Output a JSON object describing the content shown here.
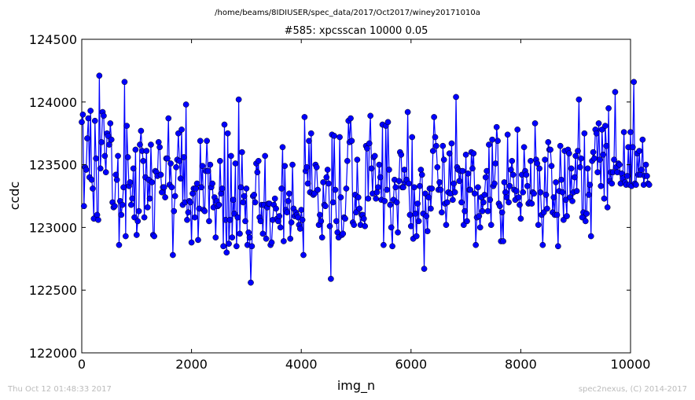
{
  "header": {
    "path": "/home/beams/8IDIUSER/spec_data/2017/Oct2017/winey20171010a"
  },
  "footer": {
    "timestamp": "Thu Oct 12 01:48:33 2017",
    "credit": "spec2nexus, (C) 2014-2017"
  },
  "colors": {
    "series": "#0000ff",
    "marker_edge": "#000000",
    "footer_text": "#bbbbbb"
  },
  "chart_data": {
    "type": "line",
    "title": "#585: xpcsscan 10000 0.05",
    "xlabel": "img_n",
    "ylabel": "ccdc",
    "xlim": [
      0,
      10000
    ],
    "ylim": [
      122000,
      124500
    ],
    "x_ticks": [
      0,
      2000,
      4000,
      6000,
      8000,
      10000
    ],
    "y_ticks": [
      122000,
      122500,
      123000,
      123500,
      124000,
      124500
    ],
    "x_tick_labels": [
      "0",
      "2000",
      "4000",
      "6000",
      "8000",
      "10000"
    ],
    "y_tick_labels": [
      "122000",
      "122500",
      "123000",
      "123500",
      "124000",
      "124500"
    ],
    "grid": false,
    "marker": "circle",
    "n_points": 500,
    "x_step": 20,
    "series": [
      {
        "values": [
          123840,
          123900,
          123170,
          123480,
          123460,
          123710,
          123870,
          123400,
          123930,
          123380,
          123310,
          123070,
          123850,
          123550,
          123100,
          123060,
          124210,
          123470,
          123680,
          123920,
          123890,
          123570,
          123440,
          123750,
          123730,
          123660,
          123830,
          123700,
          123200,
          123160,
          123170,
          123420,
          123380,
          123570,
          122860,
          123210,
          123100,
          123180,
          123320,
          124160,
          122930,
          123810,
          123560,
          123330,
          123360,
          123180,
          123230,
          123470,
          123080,
          123620,
          122940,
          123050,
          123130,
          123660,
          123770,
          123610,
          123530,
          123080,
          123400,
          123610,
          123160,
          123380,
          123230,
          123660,
          123360,
          122940,
          122930,
          123450,
          123440,
          123410,
          123680,
          123640,
          123420,
          123280,
          123320,
          123320,
          123240,
          123550,
          123550,
          123870,
          123340,
          123510,
          123320,
          122780,
          123130,
          123250,
          123480,
          123540,
          123750,
          123530,
          123390,
          123780,
          123180,
          123560,
          123200,
          123980,
          123060,
          123120,
          123210,
          123200,
          122880,
          123270,
          123310,
          123080,
          123310,
          123350,
          122900,
          123150,
          123690,
          123320,
          123490,
          123140,
          123130,
          123450,
          123690,
          123450,
          123050,
          123500,
          123320,
          123350,
          123160,
          123240,
          122920,
          123210,
          123170,
          123180,
          123530,
          123270,
          123310,
          122850,
          123820,
          123060,
          122800,
          123750,
          122870,
          123060,
          123570,
          122920,
          123220,
          123110,
          123510,
          122850,
          123080,
          124020,
          122950,
          123320,
          123600,
          123200,
          123250,
          123050,
          123310,
          122860,
          122960,
          122920,
          122560,
          122850,
          123250,
          123260,
          123200,
          123510,
          123440,
          123530,
          123080,
          123050,
          123180,
          122950,
          123180,
          123570,
          122910,
          123160,
          123190,
          123190,
          122860,
          122880,
          123060,
          123180,
          123230,
          123150,
          123070,
          123050,
          123090,
          123000,
          123310,
          123640,
          122890,
          123490,
          123140,
          123120,
          123210,
          123270,
          122910,
          123040,
          123500,
          123150,
          123090,
          123120,
          123100,
          123080,
          123020,
          122990,
          123140,
          123060,
          122780,
          123880,
          123450,
          123480,
          123350,
          123690,
          123280,
          123750,
          123270,
          123260,
          123270,
          123500,
          123480,
          123300,
          123020,
          123100,
          123050,
          122920,
          123360,
          123180,
          123170,
          123400,
          123460,
          123350,
          123010,
          122590,
          123740,
          123200,
          123730,
          123300,
          123050,
          122960,
          122920,
          123720,
          123240,
          122940,
          122950,
          123080,
          123070,
          123310,
          123530,
          123850,
          123680,
          123870,
          123690,
          123040,
          123020,
          123260,
          123120,
          123540,
          123240,
          123150,
          123020,
          123100,
          123100,
          123070,
          123010,
          123650,
          123630,
          123230,
          123670,
          123890,
          123470,
          123270,
          123560,
          123570,
          123230,
          123280,
          123320,
          123500,
          123400,
          123220,
          123820,
          122860,
          123210,
          123810,
          123300,
          123840,
          123460,
          123180,
          123000,
          122850,
          123220,
          123380,
          123320,
          123200,
          122960,
          123370,
          123600,
          123580,
          123320,
          123320,
          123460,
          123360,
          123380,
          123920,
          123350,
          123100,
          123010,
          123720,
          122910,
          123320,
          123110,
          122930,
          123190,
          123050,
          123330,
          123460,
          123420,
          123110,
          122670,
          123270,
          123090,
          122970,
          123240,
          123310,
          123150,
          123310,
          123610,
          123880,
          123720,
          123650,
          123480,
          123300,
          123360,
          123300,
          123120,
          123650,
          123540,
          123190,
          123020,
          123200,
          123280,
          123590,
          123270,
          123670,
          123220,
          123350,
          123280,
          124040,
          123480,
          123460,
          123370,
          123450,
          123200,
          123450,
          123020,
          123130,
          123580,
          123050,
          123430,
          123300,
          123300,
          123600,
          123470,
          123590,
          123270,
          122860,
          123080,
          123320,
          123090,
          123000,
          123240,
          123130,
          123200,
          123260,
          123400,
          123450,
          123130,
          123660,
          123220,
          123020,
          123700,
          123330,
          123350,
          123510,
          123800,
          123690,
          123190,
          123170,
          122890,
          123120,
          122890,
          123360,
          123280,
          123240,
          123740,
          123200,
          123330,
          123460,
          123530,
          123420,
          123300,
          123220,
          123290,
          123780,
          123240,
          123180,
          123070,
          123420,
          123280,
          123640,
          123450,
          123420,
          123330,
          123190,
          123200,
          123530,
          123190,
          123280,
          123270,
          123830,
          123540,
          123510,
          123020,
          123470,
          123280,
          123100,
          122860,
          123120,
          123540,
          123260,
          123150,
          123680,
          123620,
          123620,
          123490,
          123120,
          123240,
          123100,
          123360,
          123100,
          122850,
          123290,
          123650,
          123380,
          123280,
          123060,
          123610,
          123220,
          123090,
          123620,
          123590,
          123240,
          123470,
          123210,
          123280,
          123400,
          123570,
          123290,
          123610,
          124020,
          123480,
          123550,
          123080,
          123120,
          123750,
          123050,
          123110,
          123470,
          123260,
          123340,
          122930,
          123530,
          123600,
          123550,
          123780,
          123750,
          123440,
          123830,
          123540,
          123330,
          123780,
          123580,
          123230,
          123810,
          123650,
          123160,
          123950,
          123370,
          123440,
          123350,
          123440,
          123540,
          124080,
          123480,
          123440,
          123510,
          123500,
          123350,
          123430,
          123390,
          123760,
          123360,
          123340,
          123410,
          123640,
          123340,
          123760,
          123330,
          123640,
          124160,
          123350,
          123340,
          123590,
          123420,
          123610,
          123420,
          123460,
          123700,
          123340,
          123410,
          123500,
          123410,
          123350,
          123340
        ]
      }
    ]
  }
}
